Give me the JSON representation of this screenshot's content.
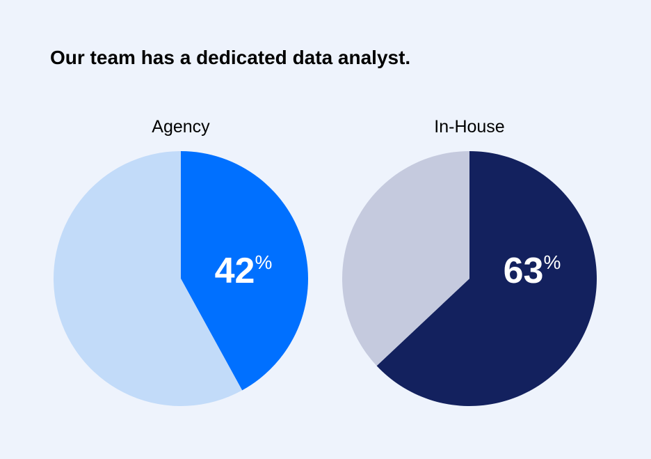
{
  "title": "Our team has a dedicated data analyst.",
  "chart_data": [
    {
      "type": "pie",
      "title": "Agency",
      "values": [
        42,
        58
      ],
      "value_labels": [
        "42%",
        null
      ],
      "colors": [
        "#0070ff",
        "#c2dbf9"
      ]
    },
    {
      "type": "pie",
      "title": "In-House",
      "values": [
        63,
        37
      ],
      "value_labels": [
        "63%",
        null
      ],
      "colors": [
        "#13215e",
        "#c5cade"
      ]
    }
  ]
}
